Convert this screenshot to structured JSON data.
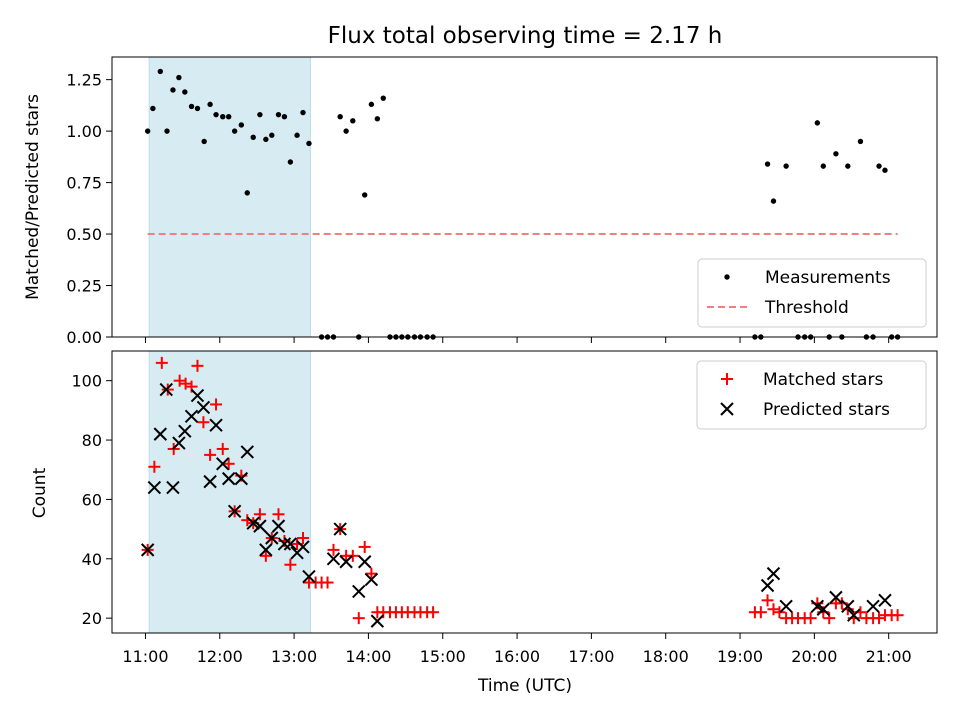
{
  "chart_data": [
    {
      "type": "scatter",
      "title": "Flux total observing time = 2.17 h",
      "xlabel": "",
      "ylabel": "Matched/Predicted stars",
      "xlim": [
        10.55,
        21.65
      ],
      "ylim": [
        0,
        1.36
      ],
      "yticks": [
        0,
        0.25,
        0.5,
        0.75,
        1.0,
        1.25
      ],
      "ytick_labels": [
        "0.00",
        "0.25",
        "0.50",
        "0.75",
        "1.00",
        "1.25"
      ],
      "shaded_span": [
        11.05,
        13.22
      ],
      "series": [
        {
          "name": "Measurements",
          "marker": "dot",
          "color": "#000000",
          "x": [
            11.03,
            11.1,
            11.2,
            11.29,
            11.37,
            11.45,
            11.53,
            11.62,
            11.7,
            11.79,
            11.87,
            11.95,
            12.04,
            12.12,
            12.2,
            12.29,
            12.37,
            12.45,
            12.54,
            12.62,
            12.7,
            12.79,
            12.87,
            12.95,
            13.04,
            13.12,
            13.2,
            13.37,
            13.45,
            13.53,
            13.62,
            13.7,
            13.79,
            13.87,
            13.95,
            14.04,
            14.12,
            14.2,
            14.29,
            14.37,
            14.45,
            14.53,
            14.62,
            14.7,
            14.79,
            14.87,
            19.2,
            19.28,
            19.37,
            19.45,
            19.62,
            19.78,
            19.87,
            19.95,
            20.04,
            20.12,
            20.2,
            20.29,
            20.37,
            20.45,
            20.62,
            20.7,
            20.79,
            20.87,
            20.95,
            21.04,
            21.12
          ],
          "y": [
            1.0,
            1.11,
            1.29,
            1.0,
            1.2,
            1.26,
            1.19,
            1.12,
            1.11,
            0.95,
            1.13,
            1.08,
            1.07,
            1.07,
            1.0,
            1.03,
            0.7,
            0.97,
            1.08,
            0.96,
            0.98,
            1.08,
            1.07,
            0.85,
            0.98,
            1.09,
            0.94,
            0.0,
            0.0,
            0.0,
            1.07,
            1.0,
            1.05,
            0.0,
            0.69,
            1.13,
            1.06,
            1.16,
            0.0,
            0.0,
            0.0,
            0.0,
            0.0,
            0.0,
            0.0,
            0.0,
            0.0,
            0.0,
            0.84,
            0.66,
            0.83,
            0.0,
            0.0,
            0.0,
            1.04,
            0.83,
            0.0,
            0.89,
            0.0,
            0.83,
            0.95,
            0.0,
            0.0,
            0.83,
            0.81,
            0.0,
            0.0
          ]
        },
        {
          "name": "Threshold",
          "style": "dashed",
          "color": "#f08080",
          "x": [
            11.03,
            21.12
          ],
          "y": [
            0.5,
            0.5
          ]
        }
      ],
      "legend": {
        "position": "lower-right",
        "entries": [
          "Measurements",
          "Threshold"
        ]
      }
    },
    {
      "type": "scatter",
      "title": "",
      "xlabel": "Time (UTC)",
      "ylabel": "Count",
      "xlim": [
        10.55,
        21.65
      ],
      "ylim": [
        15,
        110
      ],
      "xticks": [
        11,
        12,
        13,
        14,
        15,
        16,
        17,
        18,
        19,
        20,
        21
      ],
      "xtick_labels": [
        "11:00",
        "12:00",
        "13:00",
        "14:00",
        "15:00",
        "16:00",
        "17:00",
        "18:00",
        "19:00",
        "20:00",
        "21:00"
      ],
      "yticks": [
        20,
        40,
        60,
        80,
        100
      ],
      "ytick_labels": [
        "20",
        "40",
        "60",
        "80",
        "100"
      ],
      "shaded_span": [
        11.05,
        13.22
      ],
      "series": [
        {
          "name": "Matched stars",
          "marker": "plus",
          "color": "#ff0000",
          "x": [
            11.03,
            11.12,
            11.22,
            11.3,
            11.38,
            11.46,
            11.54,
            11.62,
            11.7,
            11.78,
            11.87,
            11.95,
            12.04,
            12.12,
            12.2,
            12.29,
            12.37,
            12.45,
            12.54,
            12.62,
            12.7,
            12.79,
            12.87,
            12.95,
            13.04,
            13.12,
            13.2,
            13.29,
            13.37,
            13.45,
            13.53,
            13.62,
            13.7,
            13.79,
            13.87,
            13.95,
            14.04,
            14.12,
            14.2,
            14.29,
            14.37,
            14.45,
            14.53,
            14.62,
            14.7,
            14.79,
            14.87,
            19.2,
            19.28,
            19.37,
            19.45,
            19.53,
            19.62,
            19.7,
            19.78,
            19.87,
            19.95,
            20.04,
            20.12,
            20.2,
            20.29,
            20.37,
            20.45,
            20.53,
            20.62,
            20.7,
            20.79,
            20.87,
            20.95,
            21.04,
            21.12
          ],
          "y": [
            43,
            71,
            106,
            97,
            77,
            100,
            99,
            98,
            105,
            86,
            75,
            92,
            77,
            72,
            56,
            68,
            53,
            52,
            55,
            41,
            47,
            55,
            46,
            38,
            45,
            47,
            32,
            32,
            32,
            32,
            43,
            50,
            41,
            41,
            20,
            44,
            35,
            22,
            22,
            22,
            22,
            22,
            22,
            22,
            22,
            22,
            22,
            22,
            22,
            26,
            23,
            22,
            20,
            20,
            20,
            20,
            20,
            25,
            22,
            20,
            25,
            25,
            23,
            20,
            22,
            20,
            20,
            20,
            21,
            21,
            21
          ]
        },
        {
          "name": "Predicted stars",
          "marker": "x",
          "color": "#000000",
          "x": [
            11.03,
            11.12,
            11.2,
            11.28,
            11.37,
            11.45,
            11.53,
            11.62,
            11.7,
            11.78,
            11.87,
            11.95,
            12.04,
            12.12,
            12.2,
            12.29,
            12.37,
            12.45,
            12.54,
            12.62,
            12.7,
            12.79,
            12.87,
            12.95,
            13.04,
            13.12,
            13.2,
            13.53,
            13.62,
            13.7,
            13.87,
            13.95,
            14.04,
            14.12,
            19.37,
            19.45,
            19.62,
            20.04,
            20.12,
            20.29,
            20.45,
            20.53,
            20.79,
            20.95
          ],
          "y": [
            43,
            64,
            82,
            97,
            64,
            79,
            83,
            88,
            95,
            91,
            66,
            85,
            72,
            67,
            56,
            67,
            76,
            52,
            51,
            43,
            47,
            51,
            45,
            45,
            42,
            44,
            34,
            40,
            50,
            39,
            29,
            39,
            33,
            19,
            31,
            35,
            24,
            24,
            23,
            27,
            24,
            21,
            24,
            26
          ]
        }
      ],
      "legend": {
        "position": "upper-right",
        "entries": [
          "Matched stars",
          "Predicted stars"
        ]
      }
    }
  ]
}
